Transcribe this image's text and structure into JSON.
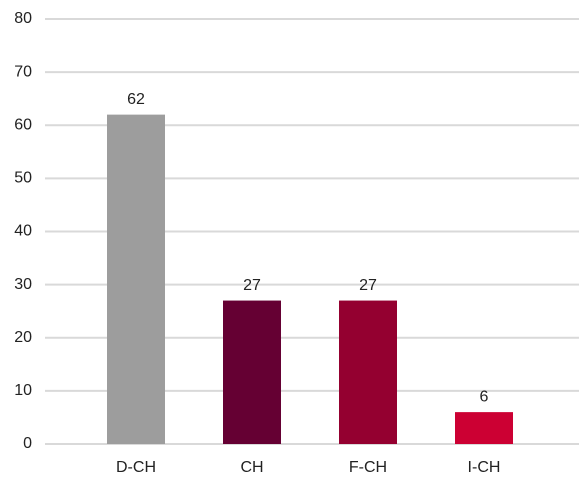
{
  "chart_data": {
    "type": "bar",
    "categories": [
      "D-CH",
      "CH",
      "F-CH",
      "I-CH"
    ],
    "values": [
      62,
      27,
      27,
      6
    ],
    "colors": [
      "#9d9d9d",
      "#650033",
      "#940030",
      "#cc0033"
    ],
    "ylim": [
      0,
      80
    ],
    "yticks": [
      0,
      10,
      20,
      30,
      40,
      50,
      60,
      70,
      80
    ],
    "grid": true
  }
}
